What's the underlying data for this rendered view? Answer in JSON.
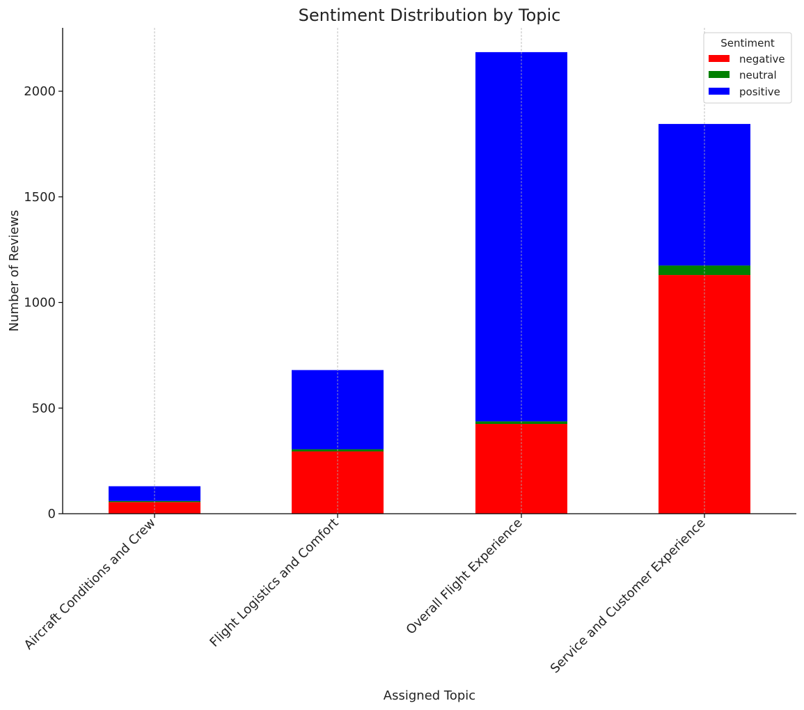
{
  "chart_data": {
    "type": "bar",
    "stacked": true,
    "title": "Sentiment Distribution by Topic",
    "xlabel": "Assigned Topic",
    "ylabel": "Number of Reviews",
    "categories": [
      "Aircraft Conditions and Crew",
      "Flight Logistics and Comfort",
      "Overall Flight Experience",
      "Service and Customer Experience"
    ],
    "series": [
      {
        "name": "negative",
        "color": "#ff0000",
        "values": [
          55,
          295,
          425,
          1130
        ]
      },
      {
        "name": "neutral",
        "color": "#008000",
        "values": [
          5,
          10,
          12,
          45
        ]
      },
      {
        "name": "positive",
        "color": "#0000ff",
        "values": [
          70,
          375,
          1748,
          670
        ]
      }
    ],
    "ylim": [
      0,
      2300
    ],
    "yticks": [
      0,
      500,
      1000,
      1500,
      2000
    ],
    "legend": {
      "title": "Sentiment",
      "placement": "top-right"
    },
    "grid": {
      "x": true,
      "y": false
    }
  }
}
